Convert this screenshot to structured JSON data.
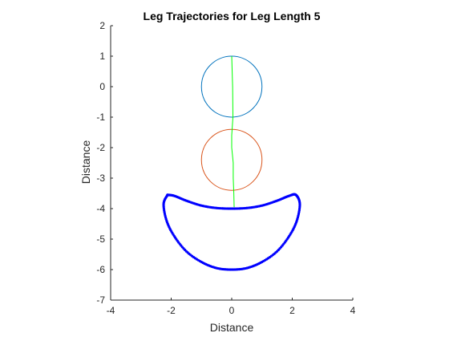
{
  "chart_data": {
    "type": "line",
    "title": "Leg Trajectories for Leg Length 5",
    "xlabel": "Distance",
    "ylabel": "Distance",
    "xlim": [
      -4,
      4
    ],
    "ylim": [
      -7,
      2
    ],
    "x_ticks": [
      -4,
      -2,
      0,
      2,
      4
    ],
    "y_ticks": [
      2,
      1,
      0,
      -1,
      -2,
      -3,
      -4,
      -5,
      -6,
      -7
    ],
    "x_tick_labels": [
      "-4",
      "-2",
      "0",
      "2",
      "4"
    ],
    "y_tick_labels": [
      "2",
      "1",
      "0",
      "-1",
      "-2",
      "-3",
      "-4",
      "-5",
      "-6",
      "-7"
    ],
    "grid": false,
    "legend": "none",
    "circles": [
      {
        "cx": 0,
        "cy": 0,
        "r": 1,
        "color": "#0072BD"
      },
      {
        "cx": 0,
        "cy": -2.4,
        "r": 1,
        "color": "#D95319"
      }
    ],
    "leg_line": {
      "color": "#00FF00",
      "points": [
        [
          0,
          1
        ],
        [
          0.03,
          0
        ],
        [
          0.04,
          -1
        ],
        [
          0.0,
          -1.6
        ],
        [
          0.0,
          -2.0
        ],
        [
          0.05,
          -2.5
        ],
        [
          0.05,
          -3.0
        ],
        [
          0.07,
          -3.5
        ],
        [
          0.08,
          -3.95
        ]
      ]
    },
    "foot_trajectory": {
      "color": "#0000FF",
      "marker": "dot",
      "upper": [
        [
          -2.12,
          -3.55
        ],
        [
          -1.9,
          -3.58
        ],
        [
          -1.5,
          -3.74
        ],
        [
          -1.0,
          -3.9
        ],
        [
          -0.5,
          -3.98
        ],
        [
          0.0,
          -4.0
        ],
        [
          0.5,
          -3.98
        ],
        [
          1.0,
          -3.9
        ],
        [
          1.5,
          -3.74
        ],
        [
          1.9,
          -3.58
        ],
        [
          2.12,
          -3.55
        ]
      ],
      "lower": [
        [
          2.12,
          -3.55
        ],
        [
          2.25,
          -3.85
        ],
        [
          2.15,
          -4.4
        ],
        [
          1.9,
          -4.9
        ],
        [
          1.5,
          -5.4
        ],
        [
          1.0,
          -5.75
        ],
        [
          0.5,
          -5.95
        ],
        [
          0.0,
          -6.0
        ],
        [
          -0.5,
          -5.95
        ],
        [
          -1.0,
          -5.75
        ],
        [
          -1.5,
          -5.4
        ],
        [
          -1.9,
          -4.9
        ],
        [
          -2.15,
          -4.4
        ],
        [
          -2.25,
          -3.85
        ],
        [
          -2.12,
          -3.55
        ]
      ]
    }
  }
}
